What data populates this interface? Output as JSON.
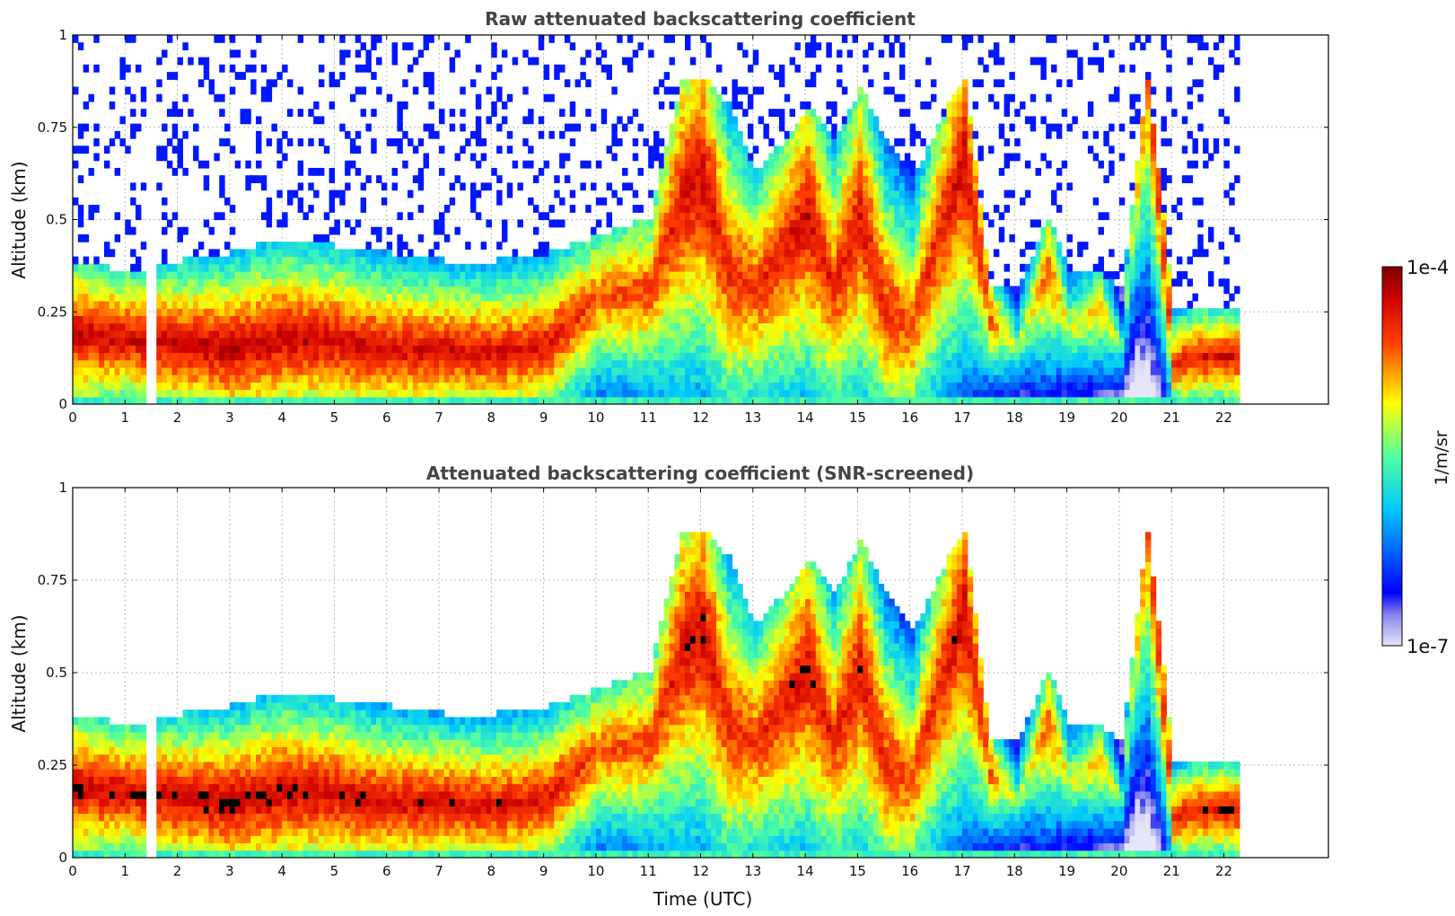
{
  "chart_data": [
    {
      "type": "heatmap",
      "title": "Raw attenuated backscattering coefficient",
      "xlabel": "",
      "ylabel": "Altitude (km)",
      "xlim": [
        0,
        24
      ],
      "ylim": [
        0,
        1
      ],
      "x_ticks": [
        "0",
        "1",
        "2",
        "3",
        "4",
        "5",
        "6",
        "7",
        "8",
        "9",
        "10",
        "11",
        "12",
        "13",
        "14",
        "15",
        "16",
        "17",
        "18",
        "19",
        "20",
        "21",
        "22"
      ],
      "y_ticks": [
        "0",
        "0.25",
        "0.5",
        "0.75",
        "1"
      ],
      "grid": true,
      "data_gap_hours": [
        1.43,
        1.53
      ],
      "data_end_hour": 22.3,
      "profiles": [
        {
          "t": 0.0,
          "top_km": 0.38,
          "peak_km": 0.18,
          "intensity": 0.93
        },
        {
          "t": 1.0,
          "top_km": 0.35,
          "peak_km": 0.17,
          "intensity": 0.92
        },
        {
          "t": 2.0,
          "top_km": 0.38,
          "peak_km": 0.15,
          "intensity": 0.93
        },
        {
          "t": 3.0,
          "top_km": 0.4,
          "peak_km": 0.14,
          "intensity": 0.94
        },
        {
          "t": 4.0,
          "top_km": 0.44,
          "peak_km": 0.17,
          "intensity": 0.93
        },
        {
          "t": 5.0,
          "top_km": 0.42,
          "peak_km": 0.16,
          "intensity": 0.92
        },
        {
          "t": 6.0,
          "top_km": 0.4,
          "peak_km": 0.14,
          "intensity": 0.91
        },
        {
          "t": 7.0,
          "top_km": 0.38,
          "peak_km": 0.14,
          "intensity": 0.9
        },
        {
          "t": 8.0,
          "top_km": 0.38,
          "peak_km": 0.13,
          "intensity": 0.9
        },
        {
          "t": 9.0,
          "top_km": 0.4,
          "peak_km": 0.15,
          "intensity": 0.89
        },
        {
          "t": 10.0,
          "top_km": 0.45,
          "peak_km": 0.28,
          "intensity": 0.8
        },
        {
          "t": 11.0,
          "top_km": 0.5,
          "peak_km": 0.3,
          "intensity": 0.82
        },
        {
          "t": 11.6,
          "top_km": 0.88,
          "peak_km": 0.55,
          "intensity": 0.9
        },
        {
          "t": 12.0,
          "top_km": 0.88,
          "peak_km": 0.6,
          "intensity": 0.92
        },
        {
          "t": 12.5,
          "top_km": 0.8,
          "peak_km": 0.35,
          "intensity": 0.85
        },
        {
          "t": 13.0,
          "top_km": 0.62,
          "peak_km": 0.3,
          "intensity": 0.84
        },
        {
          "t": 13.5,
          "top_km": 0.7,
          "peak_km": 0.4,
          "intensity": 0.88
        },
        {
          "t": 14.0,
          "top_km": 0.8,
          "peak_km": 0.5,
          "intensity": 0.92
        },
        {
          "t": 14.5,
          "top_km": 0.7,
          "peak_km": 0.3,
          "intensity": 0.86
        },
        {
          "t": 15.0,
          "top_km": 0.85,
          "peak_km": 0.5,
          "intensity": 0.9
        },
        {
          "t": 15.5,
          "top_km": 0.7,
          "peak_km": 0.25,
          "intensity": 0.85
        },
        {
          "t": 16.0,
          "top_km": 0.6,
          "peak_km": 0.2,
          "intensity": 0.82
        },
        {
          "t": 16.5,
          "top_km": 0.75,
          "peak_km": 0.45,
          "intensity": 0.86
        },
        {
          "t": 17.0,
          "top_km": 0.88,
          "peak_km": 0.65,
          "intensity": 0.92
        },
        {
          "t": 17.5,
          "top_km": 0.3,
          "peak_km": 0.22,
          "intensity": 0.8
        },
        {
          "t": 18.0,
          "top_km": 0.3,
          "peak_km": 0.15,
          "intensity": 0.55
        },
        {
          "t": 18.6,
          "top_km": 0.5,
          "peak_km": 0.35,
          "intensity": 0.8
        },
        {
          "t": 19.0,
          "top_km": 0.35,
          "peak_km": 0.2,
          "intensity": 0.6
        },
        {
          "t": 19.6,
          "top_km": 0.35,
          "peak_km": 0.25,
          "intensity": 0.72
        },
        {
          "t": 20.0,
          "top_km": 0.3,
          "peak_km": 0.15,
          "intensity": 0.5
        },
        {
          "t": 20.5,
          "top_km": 0.88,
          "peak_km": 0.86,
          "intensity": 0.8
        },
        {
          "t": 21.0,
          "top_km": 0.25,
          "peak_km": 0.1,
          "intensity": 0.85
        },
        {
          "t": 21.5,
          "top_km": 0.25,
          "peak_km": 0.12,
          "intensity": 0.9
        },
        {
          "t": 22.0,
          "top_km": 0.25,
          "peak_km": 0.12,
          "intensity": 0.9
        }
      ]
    },
    {
      "type": "heatmap",
      "title": "Attenuated backscattering coefficient (SNR-screened)",
      "xlabel": "Time (UTC)",
      "ylabel": "Altitude (km)",
      "xlim": [
        0,
        24
      ],
      "ylim": [
        0,
        1
      ],
      "x_ticks": [
        "0",
        "1",
        "2",
        "3",
        "4",
        "5",
        "6",
        "7",
        "8",
        "9",
        "10",
        "11",
        "12",
        "13",
        "14",
        "15",
        "16",
        "17",
        "18",
        "19",
        "20",
        "21",
        "22"
      ],
      "y_ticks": [
        "0",
        "0.25",
        "0.5",
        "0.75",
        "1"
      ],
      "grid": true,
      "saturated_color": "#000000",
      "data_gap_hours": [
        1.43,
        1.53
      ],
      "data_end_hour": 22.3
    }
  ],
  "colorbar": {
    "min_label": "1e-7",
    "max_label": "1e-4",
    "unit_label": "1/m/sr",
    "colormap": "jet",
    "low_end_color": "#e6e6fa",
    "high_end_color": "#7f0000"
  }
}
